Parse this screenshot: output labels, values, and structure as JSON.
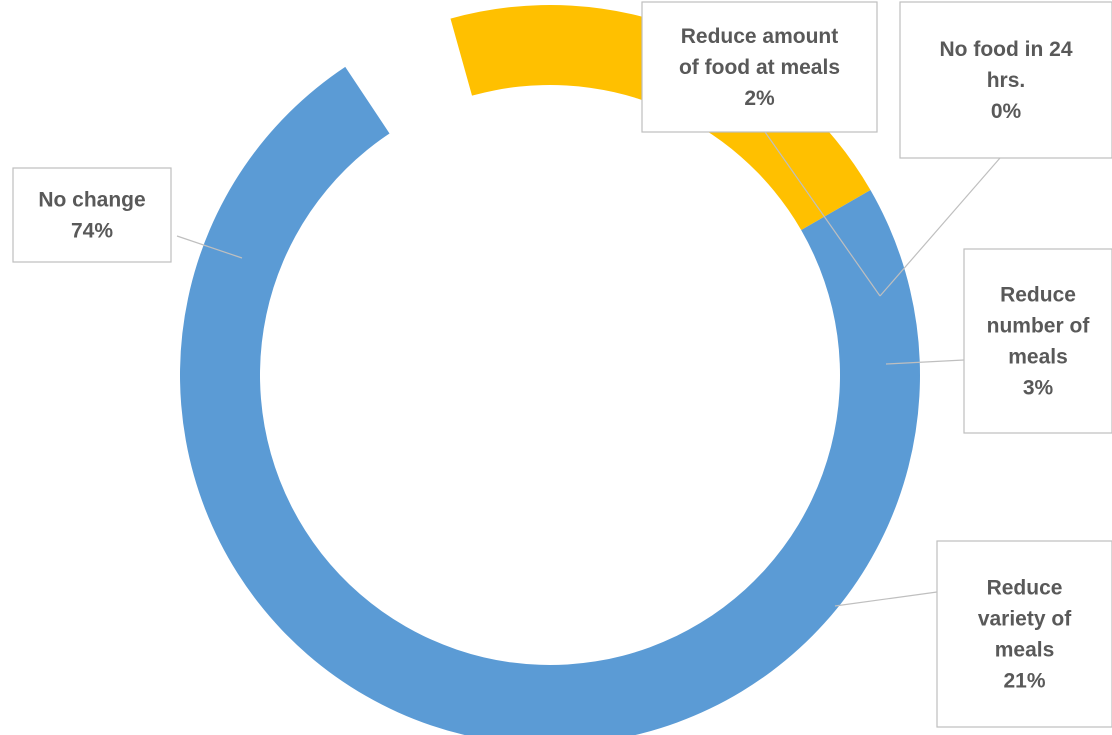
{
  "chart_data": {
    "type": "pie",
    "subtype": "exploded-doughnut",
    "title": "",
    "categories": [
      "No change",
      "Reduce amount of food at meals",
      "No food in 24 hrs.",
      "Reduce number of meals",
      "Reduce variety of meals"
    ],
    "values": [
      74,
      2,
      0,
      3,
      21
    ],
    "unit": "%",
    "colors": [
      "#5B9BD5",
      "#ED7D31",
      "#A5A5A5",
      "#A5A5A5",
      "#FFC000"
    ],
    "legend": "none",
    "labels": [
      {
        "lines": [
          "No change",
          "74%"
        ]
      },
      {
        "lines": [
          "Reduce amount",
          "of food at meals",
          "2%"
        ]
      },
      {
        "lines": [
          "No food in 24",
          "hrs.",
          "0%"
        ]
      },
      {
        "lines": [
          "Reduce",
          "number of",
          "meals",
          "3%"
        ]
      },
      {
        "lines": [
          "Reduce",
          "variety of",
          "meals",
          "21%"
        ]
      }
    ]
  }
}
